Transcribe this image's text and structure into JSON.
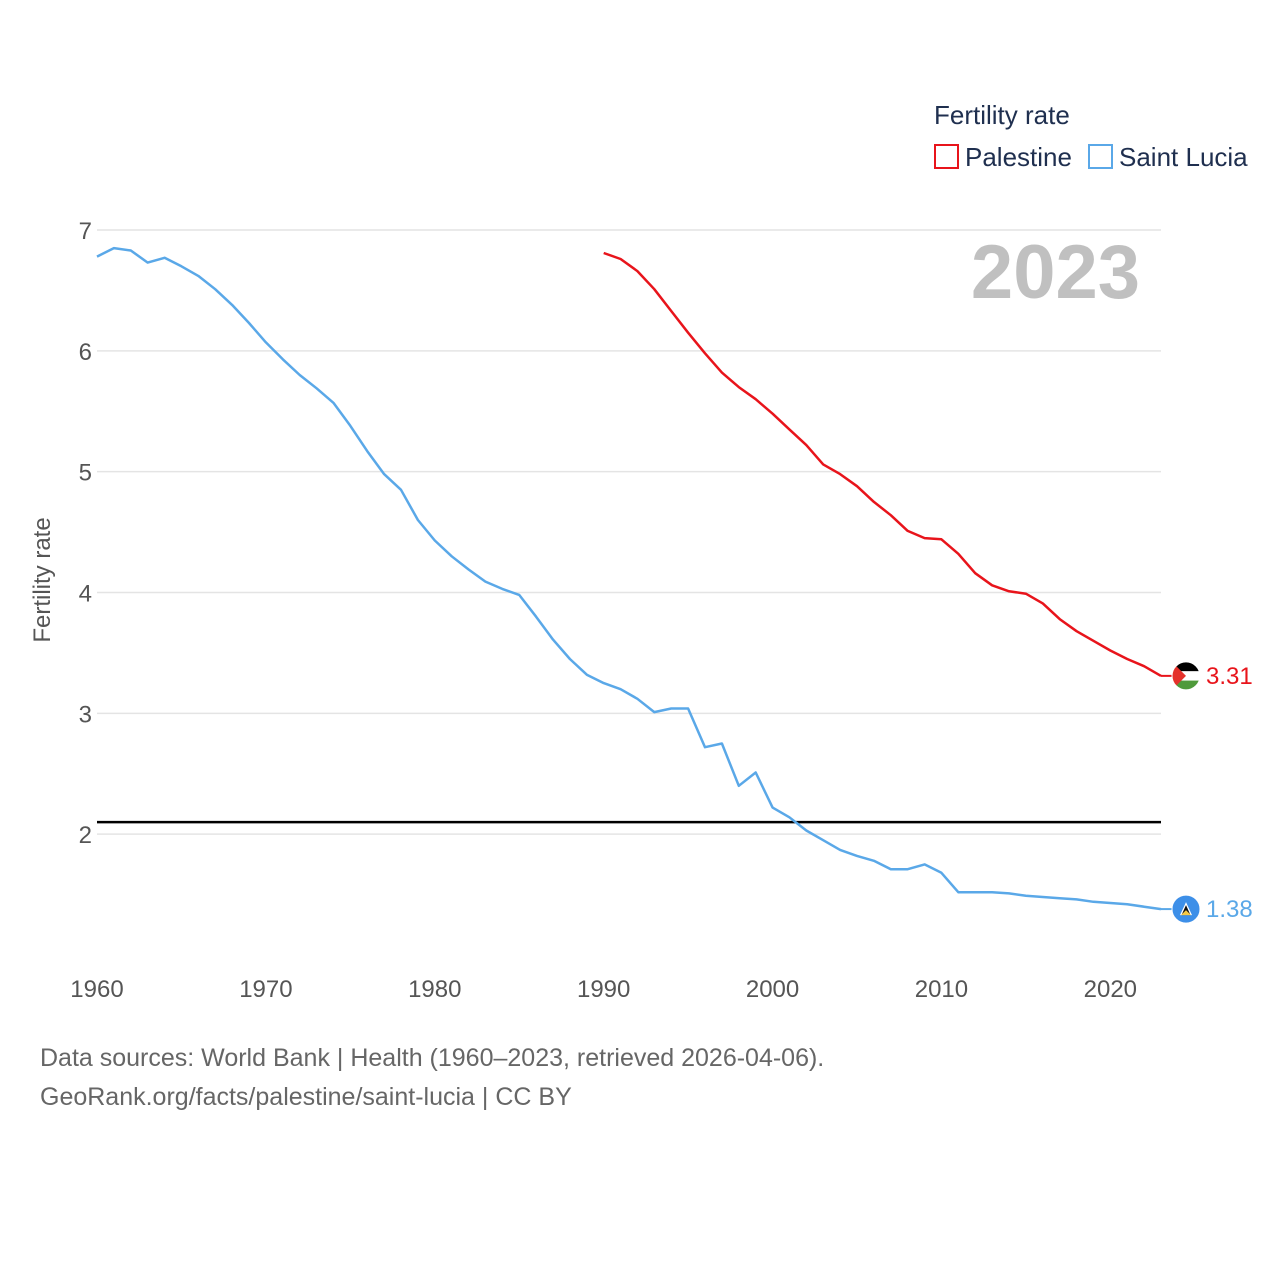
{
  "chart_data": {
    "type": "line",
    "year_label": "2023",
    "ylabel": "Fertility rate",
    "xlim": [
      1960,
      2023
    ],
    "ylim": [
      1,
      7
    ],
    "x_ticks": [
      1960,
      1970,
      1980,
      1990,
      2000,
      2010,
      2020
    ],
    "y_ticks": [
      2,
      3,
      4,
      5,
      6,
      7
    ],
    "reference_line": 2.1,
    "legend": {
      "title": "Fertility rate",
      "position": "top-right"
    },
    "series": [
      {
        "name": "Palestine",
        "color": "#e8141b",
        "end_label": "3.31",
        "flag": "palestine-flag-icon",
        "x": [
          1990,
          1991,
          1992,
          1993,
          1994,
          1995,
          1996,
          1997,
          1998,
          1999,
          2000,
          2001,
          2002,
          2003,
          2004,
          2005,
          2006,
          2007,
          2008,
          2009,
          2010,
          2011,
          2012,
          2013,
          2014,
          2015,
          2016,
          2017,
          2018,
          2019,
          2020,
          2021,
          2022,
          2023
        ],
        "values": [
          6.81,
          6.76,
          6.66,
          6.51,
          6.33,
          6.15,
          5.98,
          5.82,
          5.7,
          5.6,
          5.48,
          5.35,
          5.22,
          5.06,
          4.98,
          4.88,
          4.75,
          4.64,
          4.51,
          4.45,
          4.44,
          4.32,
          4.16,
          4.06,
          4.01,
          3.99,
          3.91,
          3.78,
          3.68,
          3.6,
          3.52,
          3.45,
          3.39,
          3.31
        ]
      },
      {
        "name": "Saint Lucia",
        "color": "#5aa8e8",
        "end_label": "1.38",
        "flag": "saint-lucia-flag-icon",
        "x": [
          1960,
          1961,
          1962,
          1963,
          1964,
          1965,
          1966,
          1967,
          1968,
          1969,
          1970,
          1971,
          1972,
          1973,
          1974,
          1975,
          1976,
          1977,
          1978,
          1979,
          1980,
          1981,
          1982,
          1983,
          1984,
          1985,
          1986,
          1987,
          1988,
          1989,
          1990,
          1991,
          1992,
          1993,
          1994,
          1995,
          1996,
          1997,
          1998,
          1999,
          2000,
          2001,
          2002,
          2003,
          2004,
          2005,
          2006,
          2007,
          2008,
          2009,
          2010,
          2011,
          2012,
          2013,
          2014,
          2015,
          2016,
          2017,
          2018,
          2019,
          2020,
          2021,
          2022,
          2023
        ],
        "values": [
          6.78,
          6.85,
          6.83,
          6.73,
          6.77,
          6.7,
          6.62,
          6.51,
          6.38,
          6.23,
          6.07,
          5.93,
          5.8,
          5.69,
          5.57,
          5.38,
          5.17,
          4.98,
          4.85,
          4.6,
          4.43,
          4.3,
          4.19,
          4.09,
          4.03,
          3.98,
          3.8,
          3.61,
          3.45,
          3.32,
          3.25,
          3.2,
          3.12,
          3.01,
          3.04,
          3.04,
          2.72,
          2.75,
          2.4,
          2.51,
          2.22,
          2.14,
          2.03,
          1.95,
          1.87,
          1.82,
          1.78,
          1.71,
          1.71,
          1.75,
          1.68,
          1.52,
          1.52,
          1.52,
          1.51,
          1.49,
          1.48,
          1.47,
          1.46,
          1.44,
          1.43,
          1.42,
          1.4,
          1.38
        ]
      }
    ]
  },
  "footer": {
    "line1": "Data sources: World Bank | Health (1960–2023, retrieved 2026-04-06).",
    "line2": "GeoRank.org/facts/palestine/saint-lucia | CC BY"
  }
}
